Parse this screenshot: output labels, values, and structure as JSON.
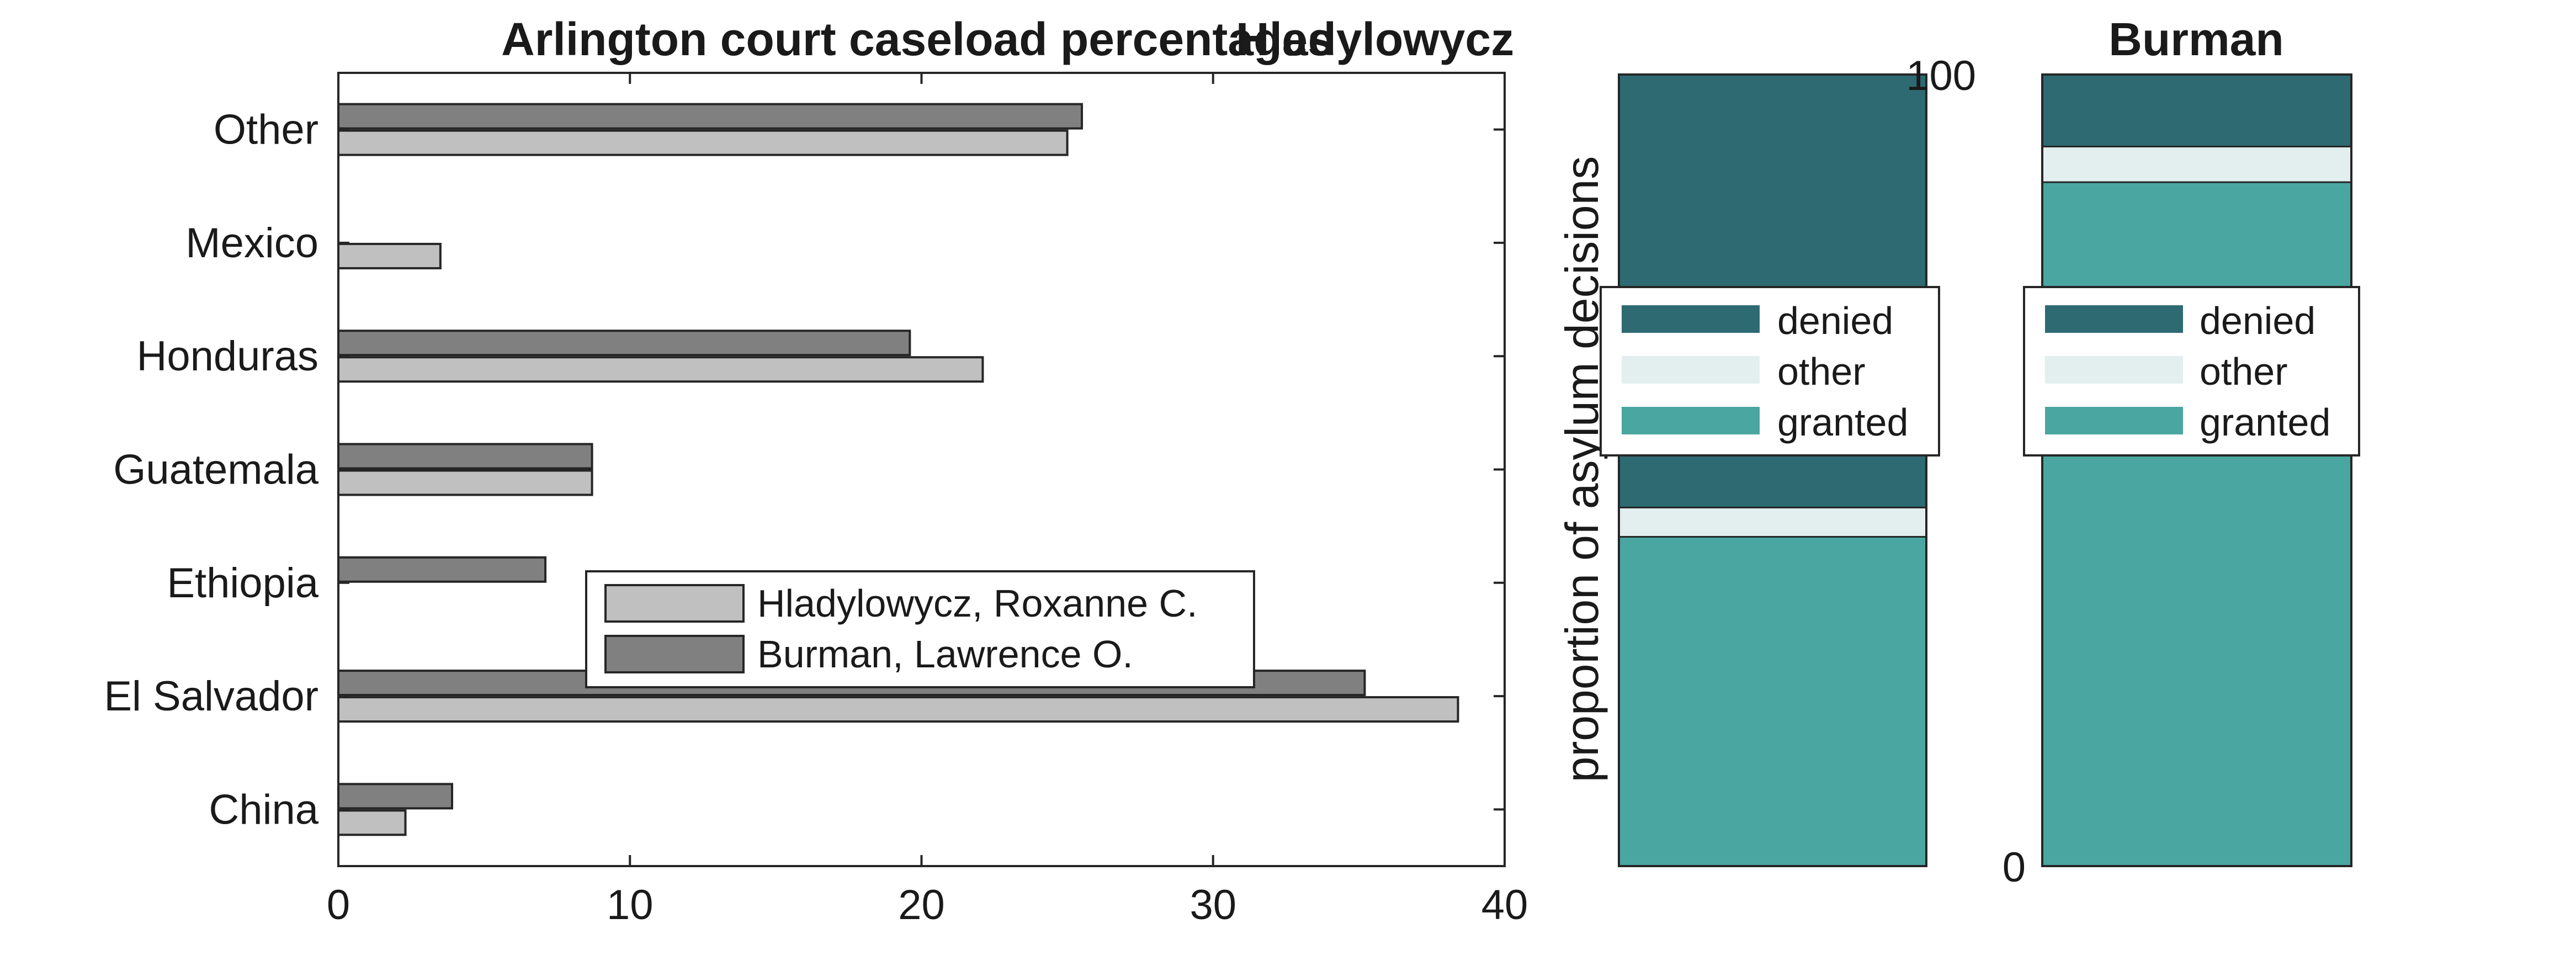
{
  "chart_data": [
    {
      "type": "bar",
      "orientation": "horizontal",
      "title": "Arlington court caseload percentages",
      "categories": [
        "Other",
        "Mexico",
        "Honduras",
        "Guatemala",
        "Ethiopia",
        "El Salvador",
        "China"
      ],
      "series": [
        {
          "name": "Hladylowycz, Roxanne C.",
          "color": "#c0c0c0",
          "values": [
            25.0,
            3.5,
            22.1,
            8.7,
            0.0,
            38.4,
            2.3
          ]
        },
        {
          "name": "Burman, Lawrence O.",
          "color": "#808080",
          "values": [
            25.5,
            0.0,
            19.6,
            8.7,
            7.1,
            35.2,
            3.9
          ]
        }
      ],
      "xlim": [
        0,
        40
      ],
      "xticks": [
        "0",
        "10",
        "20",
        "30",
        "40"
      ],
      "xlabel": "",
      "ylabel": "",
      "legend": "center-bottom",
      "grid": false
    },
    {
      "type": "bar",
      "stacked": true,
      "title": "Hladylowycz",
      "ylabel": "proportion of asylum decisions",
      "ylim": [
        0,
        100
      ],
      "segments": [
        {
          "name": "granted",
          "color": "#4aa6a0",
          "value": 41.6
        },
        {
          "name": "other",
          "color": "#e3eeef",
          "value": 3.7
        },
        {
          "name": "denied",
          "color": "#2e6a72",
          "value": 54.7
        }
      ],
      "legend": "center"
    },
    {
      "type": "bar",
      "stacked": true,
      "title": "Burman",
      "ylim": [
        0,
        100
      ],
      "yticks": [
        "0",
        "100"
      ],
      "segments": [
        {
          "name": "granted",
          "color": "#4aa6a0",
          "value": 86.4
        },
        {
          "name": "other",
          "color": "#e3eeef",
          "value": 4.5
        },
        {
          "name": "denied",
          "color": "#2e6a72",
          "value": 9.1
        }
      ],
      "legend": "center"
    }
  ]
}
